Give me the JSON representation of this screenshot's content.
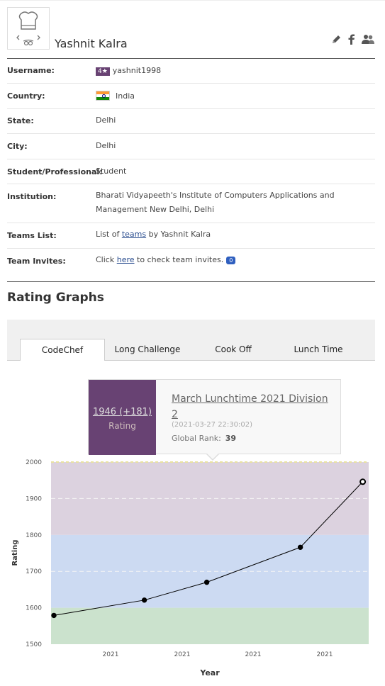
{
  "profile": {
    "name": "Yashnit Kalra"
  },
  "details": [
    {
      "key": "Username:",
      "stars": "4★",
      "value": "yashnit1998"
    },
    {
      "key": "Country:",
      "value": "India"
    },
    {
      "key": "State:",
      "value": "Delhi"
    },
    {
      "key": "City:",
      "value": "Delhi"
    },
    {
      "key": "Student/Professional:",
      "value": "Student"
    },
    {
      "key": "Institution:",
      "value": "Bharati Vidyapeeth's Institute of Computers Applications and Management New Delhi, Delhi"
    },
    {
      "key": "Teams List:",
      "pre": "List of ",
      "link": "teams",
      "post": " by Yashnit Kalra"
    },
    {
      "key": "Team Invites:",
      "pre": "Click ",
      "link": "here",
      "post": " to check team invites.",
      "badge": "0"
    }
  ],
  "section_title": "Rating Graphs",
  "tabs": [
    "CodeChef",
    "Long Challenge",
    "Cook Off",
    "Lunch Time"
  ],
  "active_tab": "CodeChef",
  "tooltip": {
    "rating": "1946 (+181)",
    "rating_label": "Rating",
    "contest": "March Lunchtime 2021 Division 2",
    "date": "(2021-03-27 22:30:02)",
    "rank_label": "Global Rank:",
    "rank": "39"
  },
  "colors": {
    "band_purple": "#dcd2df",
    "band_blue": "#ccdaf2",
    "band_green": "#cbe2cd",
    "star_bg": "#684273"
  },
  "chart_data": {
    "type": "line",
    "xlabel": "Year",
    "ylabel": "Rating",
    "ylim": [
      1500,
      2000
    ],
    "yticks": [
      1500,
      1600,
      1700,
      1800,
      1900,
      2000
    ],
    "xtick_labels": [
      "2021",
      "2021",
      "2021",
      "2021"
    ],
    "bands": [
      {
        "from": 1500,
        "to": 1600,
        "color": "#cbe2cd"
      },
      {
        "from": 1600,
        "to": 1800,
        "color": "#ccdaf2"
      },
      {
        "from": 1800,
        "to": 2000,
        "color": "#dcd2df"
      }
    ],
    "x": [
      0.0,
      0.29,
      0.49,
      0.79,
      0.99
    ],
    "values": [
      1579,
      1621,
      1670,
      1766,
      1946
    ]
  }
}
